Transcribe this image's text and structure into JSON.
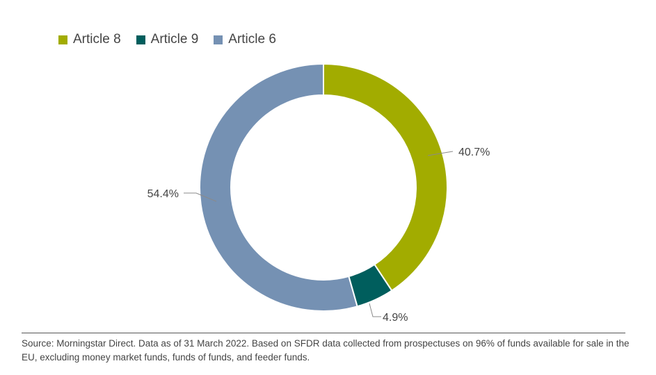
{
  "chart_data": {
    "type": "pie",
    "donut": true,
    "title": "",
    "legend_position": "top-left",
    "slices": [
      {
        "name": "Article 8",
        "value": 40.7,
        "label": "40.7%",
        "color": "#a2ac00"
      },
      {
        "name": "Article 9",
        "value": 4.9,
        "label": "4.9%",
        "color": "#005e5d"
      },
      {
        "name": "Article 6",
        "value": 54.4,
        "label": "54.4%",
        "color": "#7591b3"
      }
    ]
  },
  "source": "Source: Morningstar Direct. Data as of 31 March 2022. Based on SFDR data collected from prospectuses on 96% of funds available for sale in the EU, excluding money market funds, funds of funds, and feeder funds."
}
